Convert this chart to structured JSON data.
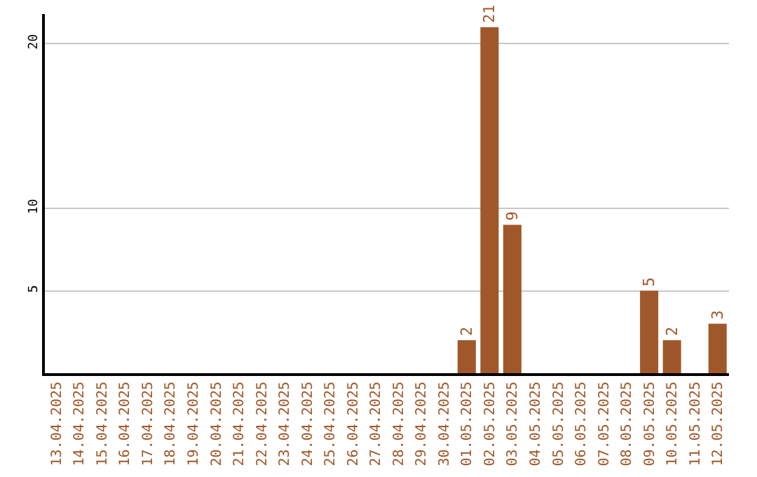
{
  "chart_data": {
    "type": "bar",
    "categories": [
      "13.04.2025",
      "14.04.2025",
      "15.04.2025",
      "16.04.2025",
      "17.04.2025",
      "18.04.2025",
      "19.04.2025",
      "20.04.2025",
      "21.04.2025",
      "22.04.2025",
      "23.04.2025",
      "24.04.2025",
      "25.04.2025",
      "26.04.2025",
      "27.04.2025",
      "28.04.2025",
      "29.04.2025",
      "30.04.2025",
      "01.05.2025",
      "02.05.2025",
      "03.05.2025",
      "04.05.2025",
      "05.05.2025",
      "06.05.2025",
      "07.05.2025",
      "08.05.2025",
      "09.05.2025",
      "10.05.2025",
      "11.05.2025",
      "12.05.2025"
    ],
    "values": [
      0,
      0,
      0,
      0,
      0,
      0,
      0,
      0,
      0,
      0,
      0,
      0,
      0,
      0,
      0,
      0,
      0,
      0,
      2,
      21,
      9,
      0,
      0,
      0,
      0,
      0,
      5,
      2,
      0,
      3
    ],
    "value_labels": [
      null,
      null,
      null,
      null,
      null,
      null,
      null,
      null,
      null,
      null,
      null,
      null,
      null,
      null,
      null,
      null,
      null,
      null,
      "2",
      "21",
      "9",
      null,
      null,
      null,
      null,
      null,
      "5",
      "2",
      null,
      "3"
    ],
    "color": "#a0582a",
    "ylim": [
      0,
      21.8
    ],
    "yticks": [
      5,
      10,
      20
    ],
    "grid": "y",
    "legend": false
  }
}
